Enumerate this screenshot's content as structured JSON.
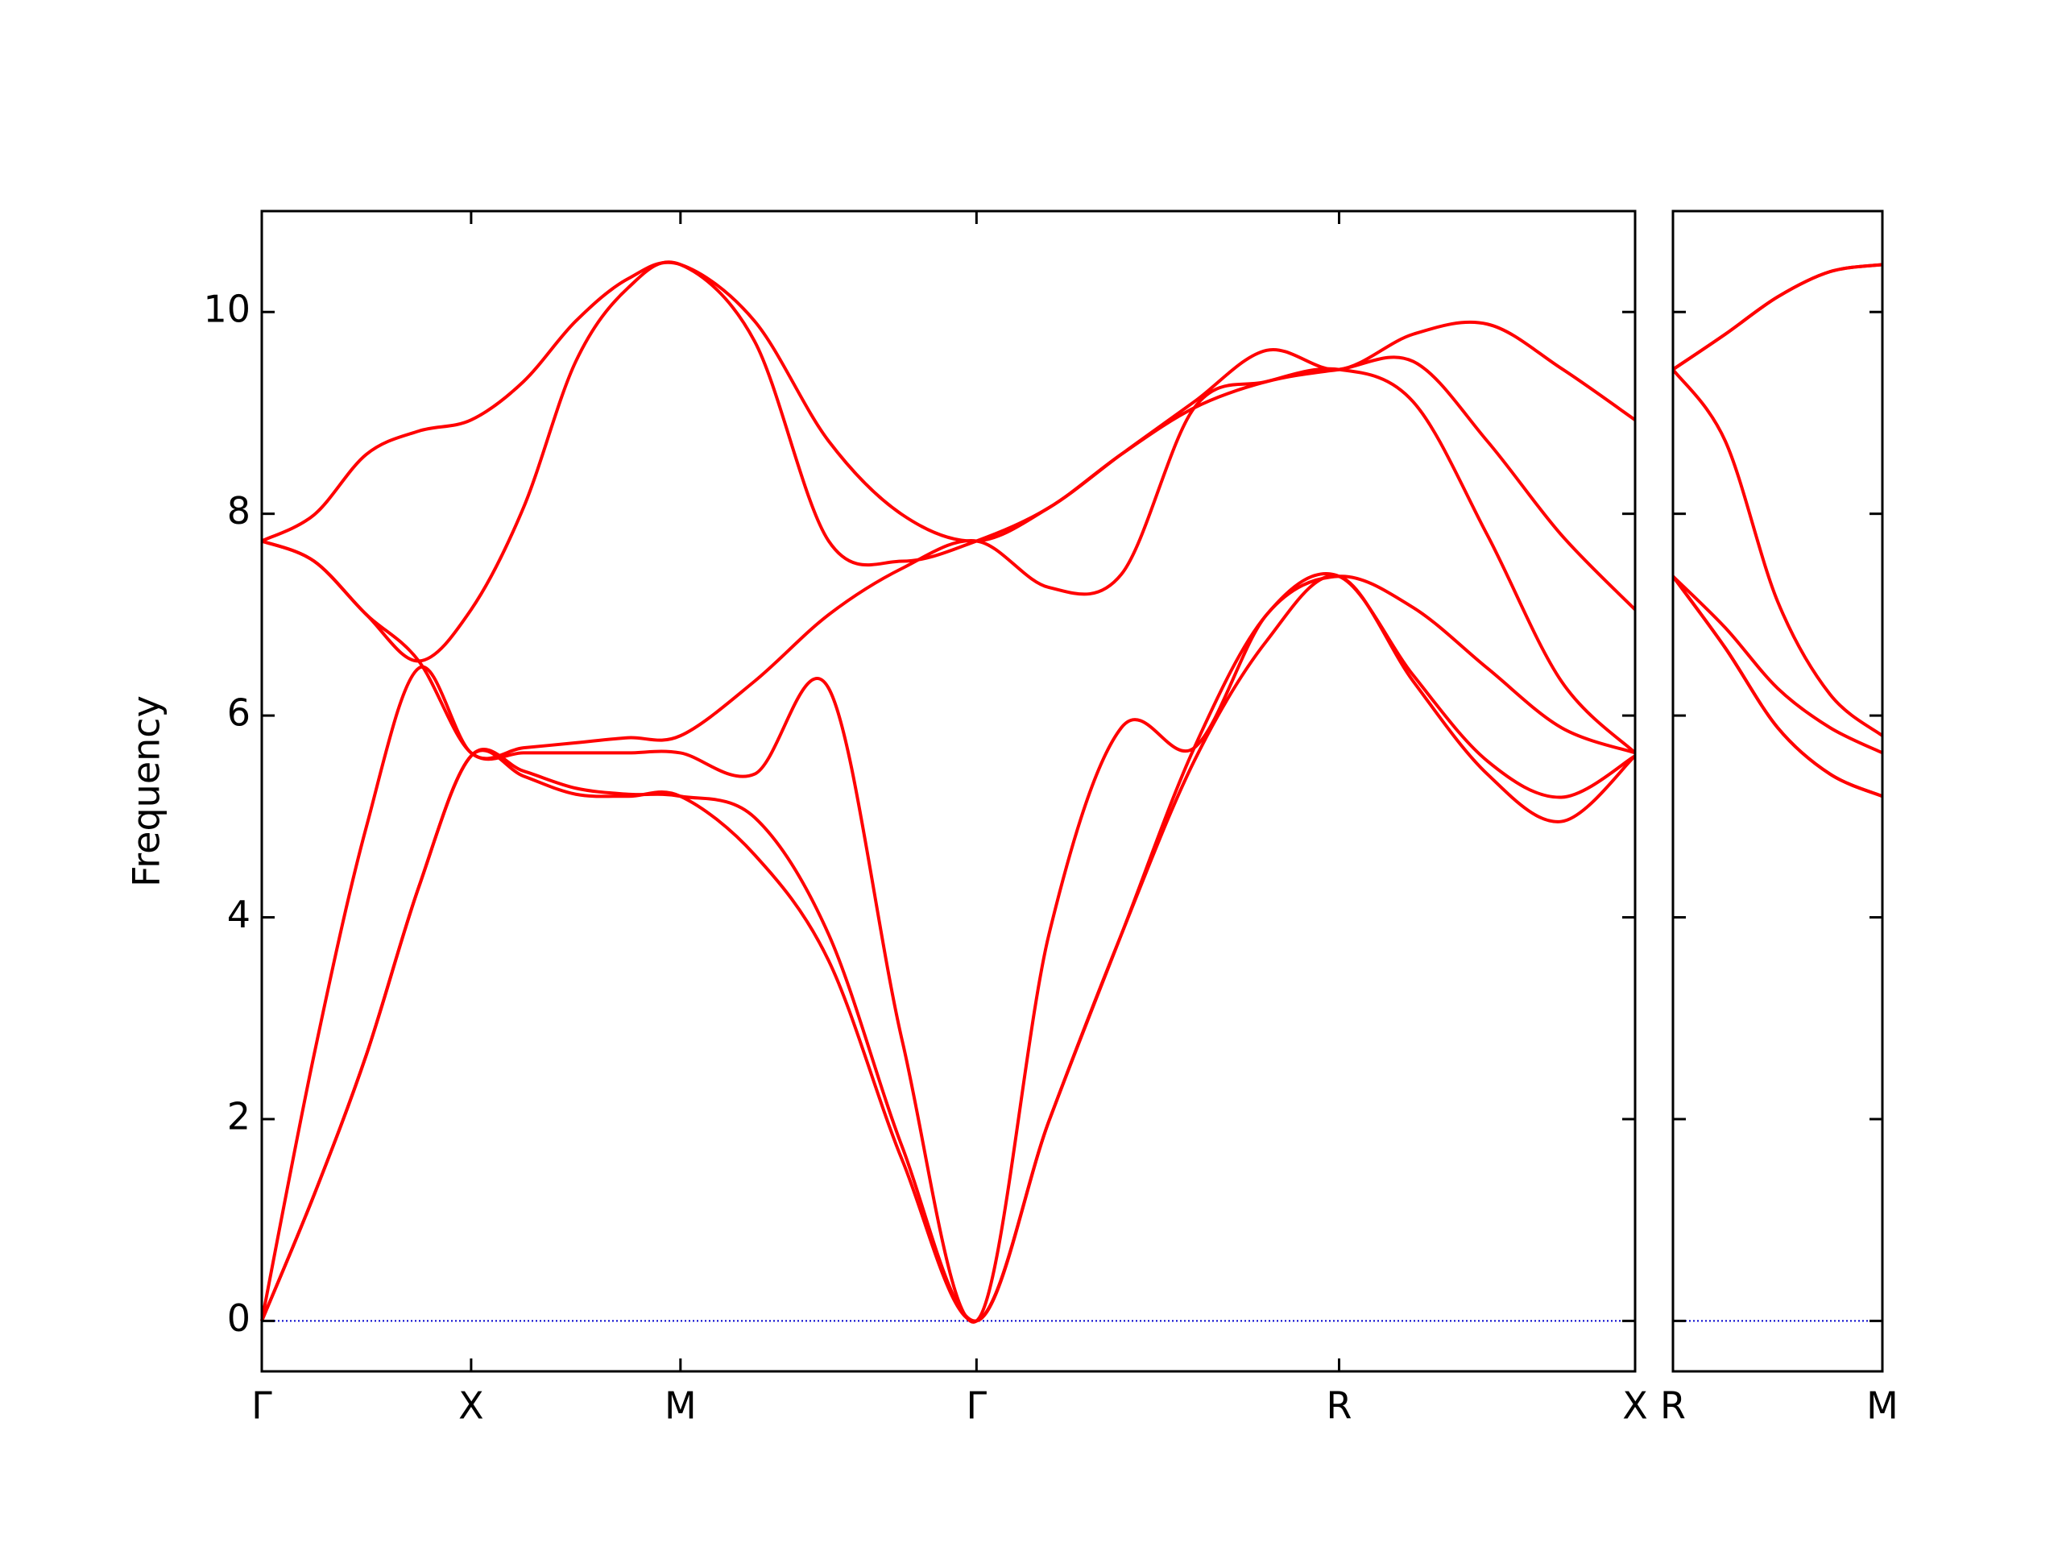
{
  "chart_data": [
    {
      "type": "line",
      "ylabel": "Frequency",
      "color": "#ff0000",
      "hline": 0,
      "hline_color": "#0000cc",
      "ytick_labels": true,
      "x": [
        0,
        0.125,
        0.25,
        0.375,
        0.5,
        0.625,
        0.75,
        0.875,
        1.0,
        1.177,
        1.354,
        1.53,
        1.707,
        1.88,
        2.053,
        2.227,
        2.4,
        2.573,
        2.75,
        2.927,
        3.104,
        3.28
      ],
      "series": [
        {
          "values": [
            0,
            1.25,
            2.64,
            4.3,
            5.6,
            5.4,
            5.22,
            5.2,
            5.2,
            4.62,
            3.57,
            1.59,
            0,
            1.98,
            3.83,
            5.55,
            6.74,
            7.38,
            6.34,
            5.42,
            4.95,
            5.6
          ]
        },
        {
          "values": [
            0,
            1.25,
            2.64,
            4.3,
            5.6,
            5.45,
            5.28,
            5.22,
            5.2,
            4.99,
            3.83,
            1.72,
            0,
            1.98,
            3.83,
            5.68,
            7.0,
            7.38,
            6.4,
            5.55,
            5.19,
            5.6
          ]
        },
        {
          "values": [
            0,
            2.64,
            4.9,
            6.47,
            5.63,
            5.63,
            5.63,
            5.63,
            5.63,
            5.42,
            6.27,
            2.77,
            0,
            3.83,
            5.88,
            5.68,
            7.0,
            7.38,
            7.07,
            6.47,
            5.88,
            5.63
          ]
        },
        {
          "values": [
            7.73,
            7.53,
            7.0,
            6.54,
            5.63,
            5.68,
            5.73,
            5.78,
            5.8,
            6.34,
            7.0,
            7.46,
            7.73,
            7.27,
            7.4,
            9.05,
            9.31,
            9.43,
            9.11,
            7.79,
            6.34,
            5.63
          ]
        },
        {
          "values": [
            7.73,
            7.53,
            7.0,
            6.54,
            7.05,
            8.06,
            9.51,
            10.24,
            10.47,
            9.71,
            7.73,
            7.53,
            7.73,
            8.06,
            8.59,
            9.05,
            9.31,
            9.43,
            9.51,
            8.72,
            7.79,
            7.05
          ]
        },
        {
          "values": [
            7.73,
            7.99,
            8.59,
            8.82,
            8.93,
            9.31,
            9.91,
            10.33,
            10.47,
            9.91,
            8.72,
            7.99,
            7.73,
            8.06,
            8.59,
            9.11,
            9.62,
            9.43,
            9.78,
            9.88,
            9.44,
            8.93
          ]
        }
      ],
      "xlim": [
        0,
        3.28
      ],
      "ylim": [
        -0.5,
        11
      ],
      "xticks": [
        {
          "value": 0,
          "label": "Γ"
        },
        {
          "value": 0.5,
          "label": "X"
        },
        {
          "value": 1.0,
          "label": "M"
        },
        {
          "value": 1.707,
          "label": "Γ"
        },
        {
          "value": 2.573,
          "label": "R"
        },
        {
          "value": 3.28,
          "label": "X"
        }
      ],
      "yticks": [
        0,
        2,
        4,
        6,
        8,
        10
      ]
    },
    {
      "type": "line",
      "color": "#ff0000",
      "hline": 0,
      "hline_color": "#0000cc",
      "ytick_labels": false,
      "x": [
        0,
        0.125,
        0.25,
        0.375,
        0.5
      ],
      "series": [
        {
          "values": [
            7.38,
            6.67,
            5.88,
            5.42,
            5.2
          ]
        },
        {
          "values": [
            7.38,
            6.67,
            5.88,
            5.42,
            5.2
          ]
        },
        {
          "values": [
            7.38,
            6.87,
            6.27,
            5.88,
            5.63
          ]
        },
        {
          "values": [
            9.43,
            8.72,
            7.13,
            6.21,
            5.8
          ]
        },
        {
          "values": [
            9.43,
            9.78,
            10.15,
            10.4,
            10.47
          ]
        },
        {
          "values": [
            9.43,
            9.78,
            10.15,
            10.4,
            10.47
          ]
        }
      ],
      "xlim": [
        0,
        0.5
      ],
      "ylim": [
        -0.5,
        11
      ],
      "xticks": [
        {
          "value": 0,
          "label": "R"
        },
        {
          "value": 0.5,
          "label": "M"
        }
      ],
      "yticks": [
        0,
        2,
        4,
        6,
        8,
        10
      ]
    }
  ]
}
